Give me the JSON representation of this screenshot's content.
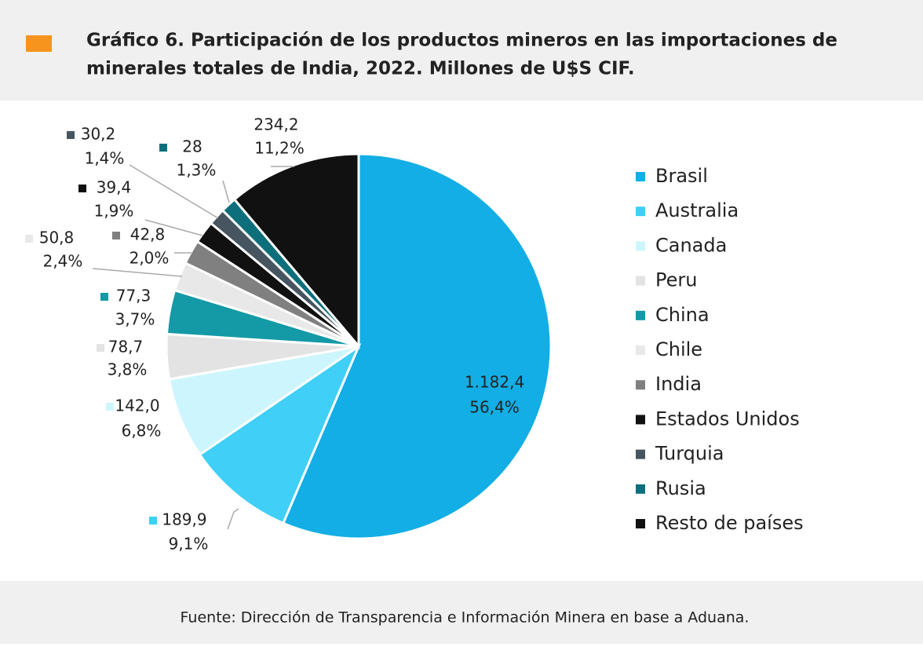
{
  "chart_data": {
    "type": "pie",
    "title_lines": [
      "Gráfico 6. Participación de los productos mineros en las importaciones de",
      "minerales totales de India, 2022. Millones de U$S CIF."
    ],
    "source": "Fuente: Dirección de Transparencia e Información Minera en base a Aduana.",
    "categories": [
      "Brasil",
      "Australia",
      "Canada",
      "Peru",
      "China",
      "Chile",
      "India",
      "Estados Unidos",
      "Turquia",
      "Rusia",
      "Resto de países"
    ],
    "values": [
      1182.4,
      189.9,
      142.0,
      78.7,
      77.3,
      50.8,
      42.8,
      39.4,
      30.2,
      28,
      234.2
    ],
    "value_labels": [
      "1.182,4",
      "189,9",
      "142,0",
      "78,7",
      "77,3",
      "50,8",
      "42,8",
      "39,4",
      "30,2",
      "28",
      "234,2"
    ],
    "percent_labels": [
      "56,4%",
      "9,1%",
      "6,8%",
      "3,8%",
      "3,7%",
      "2,4%",
      "2,0%",
      "1,9%",
      "1,4%",
      "1,3%",
      "11,2%"
    ],
    "colors": [
      "#12aee5",
      "#3fcff7",
      "#cdf5fd",
      "#e3e3e3",
      "#1499a6",
      "#e8e8e8",
      "#808080",
      "#111111",
      "#475560",
      "#0e6f7c",
      "#111111"
    ],
    "legend": "right"
  }
}
